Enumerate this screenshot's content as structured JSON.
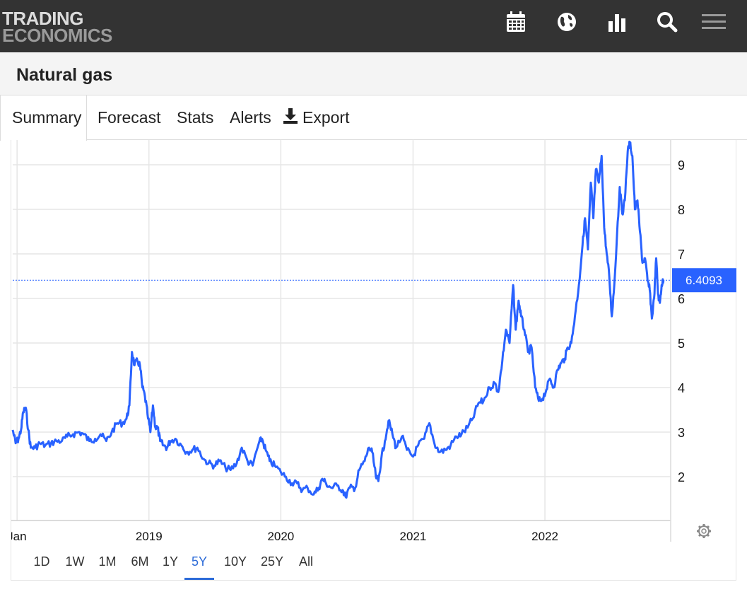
{
  "logo": {
    "line1": "TRADING",
    "line2": "ECONOMICS"
  },
  "topbar_icons": [
    "calendar-icon",
    "globe-icon",
    "bar-chart-icon",
    "search-icon",
    "menu-icon"
  ],
  "title": "Natural gas",
  "tabs": [
    {
      "label": "Summary",
      "active": true
    },
    {
      "label": "Forecast"
    },
    {
      "label": "Stats"
    },
    {
      "label": "Alerts"
    },
    {
      "label": "Export",
      "icon": "download-icon"
    }
  ],
  "ranges": [
    "1D",
    "1W",
    "1M",
    "6M",
    "1Y",
    "5Y",
    "10Y",
    "25Y",
    "All"
  ],
  "active_range": "5Y",
  "colors": {
    "series": "#2962ff",
    "topbar": "#333333",
    "accent": "#2c6bd8"
  },
  "chart_data": {
    "type": "line",
    "series": [
      {
        "name": "",
        "color": "#2962ff"
      }
    ],
    "x_tick_labels": [
      "Jan",
      "2019",
      "2020",
      "2021",
      "2022"
    ],
    "y_tick_labels": [
      "2",
      "3",
      "4",
      "5",
      "6",
      "7",
      "8",
      "9"
    ],
    "ylim": [
      1.0,
      9.6
    ],
    "xlim": [
      "2017-12-20",
      "2022-12-15"
    ],
    "last_value_label": "6.4093",
    "last_value": 6.4093,
    "grid": true,
    "y_axis_side": "right",
    "points": [
      [
        "2017-12-20",
        3.05
      ],
      [
        "2017-12-28",
        2.75
      ],
      [
        "2018-01-05",
        2.85
      ],
      [
        "2018-01-12",
        3.05
      ],
      [
        "2018-01-18",
        3.45
      ],
      [
        "2018-01-25",
        3.55
      ],
      [
        "2018-02-01",
        3.05
      ],
      [
        "2018-02-08",
        2.65
      ],
      [
        "2018-02-20",
        2.65
      ],
      [
        "2018-03-05",
        2.75
      ],
      [
        "2018-03-20",
        2.7
      ],
      [
        "2018-04-05",
        2.75
      ],
      [
        "2018-04-20",
        2.8
      ],
      [
        "2018-05-05",
        2.8
      ],
      [
        "2018-05-20",
        2.9
      ],
      [
        "2018-06-05",
        2.95
      ],
      [
        "2018-06-20",
        3.0
      ],
      [
        "2018-07-05",
        2.95
      ],
      [
        "2018-07-20",
        2.8
      ],
      [
        "2018-08-05",
        2.85
      ],
      [
        "2018-08-20",
        2.95
      ],
      [
        "2018-09-05",
        2.8
      ],
      [
        "2018-09-20",
        3.0
      ],
      [
        "2018-10-05",
        3.2
      ],
      [
        "2018-10-20",
        3.2
      ],
      [
        "2018-10-31",
        3.3
      ],
      [
        "2018-11-08",
        3.6
      ],
      [
        "2018-11-15",
        4.8
      ],
      [
        "2018-11-22",
        4.5
      ],
      [
        "2018-11-30",
        4.6
      ],
      [
        "2018-12-07",
        4.5
      ],
      [
        "2018-12-14",
        4.0
      ],
      [
        "2018-12-21",
        3.8
      ],
      [
        "2018-12-28",
        3.4
      ],
      [
        "2019-01-05",
        3.0
      ],
      [
        "2019-01-12",
        3.6
      ],
      [
        "2019-01-19",
        3.1
      ],
      [
        "2019-01-25",
        3.1
      ],
      [
        "2019-02-01",
        2.8
      ],
      [
        "2019-02-10",
        2.7
      ],
      [
        "2019-02-20",
        2.65
      ],
      [
        "2019-03-01",
        2.8
      ],
      [
        "2019-03-15",
        2.85
      ],
      [
        "2019-04-01",
        2.7
      ],
      [
        "2019-04-15",
        2.55
      ],
      [
        "2019-05-01",
        2.6
      ],
      [
        "2019-05-15",
        2.65
      ],
      [
        "2019-06-01",
        2.4
      ],
      [
        "2019-06-15",
        2.3
      ],
      [
        "2019-07-01",
        2.25
      ],
      [
        "2019-07-15",
        2.35
      ],
      [
        "2019-08-01",
        2.2
      ],
      [
        "2019-08-15",
        2.15
      ],
      [
        "2019-09-01",
        2.3
      ],
      [
        "2019-09-15",
        2.65
      ],
      [
        "2019-10-01",
        2.35
      ],
      [
        "2019-10-15",
        2.25
      ],
      [
        "2019-11-01",
        2.75
      ],
      [
        "2019-11-10",
        2.85
      ],
      [
        "2019-11-20",
        2.6
      ],
      [
        "2019-12-01",
        2.35
      ],
      [
        "2019-12-15",
        2.25
      ],
      [
        "2020-01-01",
        2.1
      ],
      [
        "2020-01-15",
        2.0
      ],
      [
        "2020-02-01",
        1.85
      ],
      [
        "2020-02-15",
        1.85
      ],
      [
        "2020-03-01",
        1.7
      ],
      [
        "2020-03-15",
        1.75
      ],
      [
        "2020-04-01",
        1.6
      ],
      [
        "2020-04-15",
        1.75
      ],
      [
        "2020-04-25",
        1.95
      ],
      [
        "2020-05-05",
        1.85
      ],
      [
        "2020-05-20",
        1.75
      ],
      [
        "2020-06-05",
        1.8
      ],
      [
        "2020-06-20",
        1.7
      ],
      [
        "2020-06-28",
        1.55
      ],
      [
        "2020-07-10",
        1.75
      ],
      [
        "2020-07-25",
        1.75
      ],
      [
        "2020-08-05",
        2.15
      ],
      [
        "2020-08-20",
        2.35
      ],
      [
        "2020-09-01",
        2.65
      ],
      [
        "2020-09-10",
        2.55
      ],
      [
        "2020-09-20",
        2.0
      ],
      [
        "2020-09-27",
        1.9
      ],
      [
        "2020-10-05",
        2.4
      ],
      [
        "2020-10-15",
        2.8
      ],
      [
        "2020-10-25",
        3.25
      ],
      [
        "2020-11-05",
        2.95
      ],
      [
        "2020-11-15",
        2.65
      ],
      [
        "2020-12-01",
        2.9
      ],
      [
        "2020-12-15",
        2.6
      ],
      [
        "2021-01-01",
        2.45
      ],
      [
        "2021-01-15",
        2.7
      ],
      [
        "2021-02-01",
        2.85
      ],
      [
        "2021-02-15",
        3.2
      ],
      [
        "2021-03-01",
        2.75
      ],
      [
        "2021-03-15",
        2.55
      ],
      [
        "2021-04-01",
        2.6
      ],
      [
        "2021-04-15",
        2.7
      ],
      [
        "2021-05-01",
        2.9
      ],
      [
        "2021-05-15",
        2.95
      ],
      [
        "2021-06-01",
        3.1
      ],
      [
        "2021-06-15",
        3.3
      ],
      [
        "2021-07-01",
        3.65
      ],
      [
        "2021-07-15",
        3.7
      ],
      [
        "2021-08-01",
        4.0
      ],
      [
        "2021-08-15",
        4.1
      ],
      [
        "2021-08-25",
        3.9
      ],
      [
        "2021-09-05",
        4.6
      ],
      [
        "2021-09-15",
        5.3
      ],
      [
        "2021-09-25",
        5.0
      ],
      [
        "2021-10-05",
        6.3
      ],
      [
        "2021-10-12",
        5.3
      ],
      [
        "2021-10-20",
        5.95
      ],
      [
        "2021-10-27",
        5.6
      ],
      [
        "2021-11-05",
        5.3
      ],
      [
        "2021-11-15",
        4.8
      ],
      [
        "2021-11-25",
        4.9
      ],
      [
        "2021-12-05",
        4.0
      ],
      [
        "2021-12-15",
        3.7
      ],
      [
        "2021-12-25",
        3.75
      ],
      [
        "2022-01-05",
        3.95
      ],
      [
        "2022-01-15",
        4.2
      ],
      [
        "2022-01-25",
        4.0
      ],
      [
        "2022-02-05",
        4.4
      ],
      [
        "2022-02-15",
        4.55
      ],
      [
        "2022-02-25",
        4.65
      ],
      [
        "2022-03-05",
        4.9
      ],
      [
        "2022-03-15",
        5.0
      ],
      [
        "2022-03-25",
        5.6
      ],
      [
        "2022-04-05",
        6.3
      ],
      [
        "2022-04-15",
        7.2
      ],
      [
        "2022-04-22",
        7.8
      ],
      [
        "2022-04-30",
        7.1
      ],
      [
        "2022-05-08",
        8.6
      ],
      [
        "2022-05-15",
        7.8
      ],
      [
        "2022-05-22",
        8.9
      ],
      [
        "2022-05-30",
        8.6
      ],
      [
        "2022-06-07",
        9.2
      ],
      [
        "2022-06-14",
        7.6
      ],
      [
        "2022-06-21",
        7.0
      ],
      [
        "2022-06-28",
        6.5
      ],
      [
        "2022-07-05",
        5.6
      ],
      [
        "2022-07-12",
        6.3
      ],
      [
        "2022-07-20",
        7.5
      ],
      [
        "2022-07-27",
        8.5
      ],
      [
        "2022-08-03",
        7.9
      ],
      [
        "2022-08-10",
        8.2
      ],
      [
        "2022-08-18",
        9.3
      ],
      [
        "2022-08-24",
        9.5
      ],
      [
        "2022-08-31",
        9.2
      ],
      [
        "2022-09-07",
        8.0
      ],
      [
        "2022-09-14",
        8.2
      ],
      [
        "2022-09-21",
        7.5
      ],
      [
        "2022-09-28",
        6.8
      ],
      [
        "2022-10-05",
        6.9
      ],
      [
        "2022-10-12",
        6.4
      ],
      [
        "2022-10-18",
        6.2
      ],
      [
        "2022-10-24",
        5.55
      ],
      [
        "2022-10-30",
        6.0
      ],
      [
        "2022-11-05",
        6.9
      ],
      [
        "2022-11-10",
        6.1
      ],
      [
        "2022-11-15",
        5.9
      ],
      [
        "2022-11-20",
        6.3
      ],
      [
        "2022-11-25",
        6.41
      ]
    ]
  }
}
